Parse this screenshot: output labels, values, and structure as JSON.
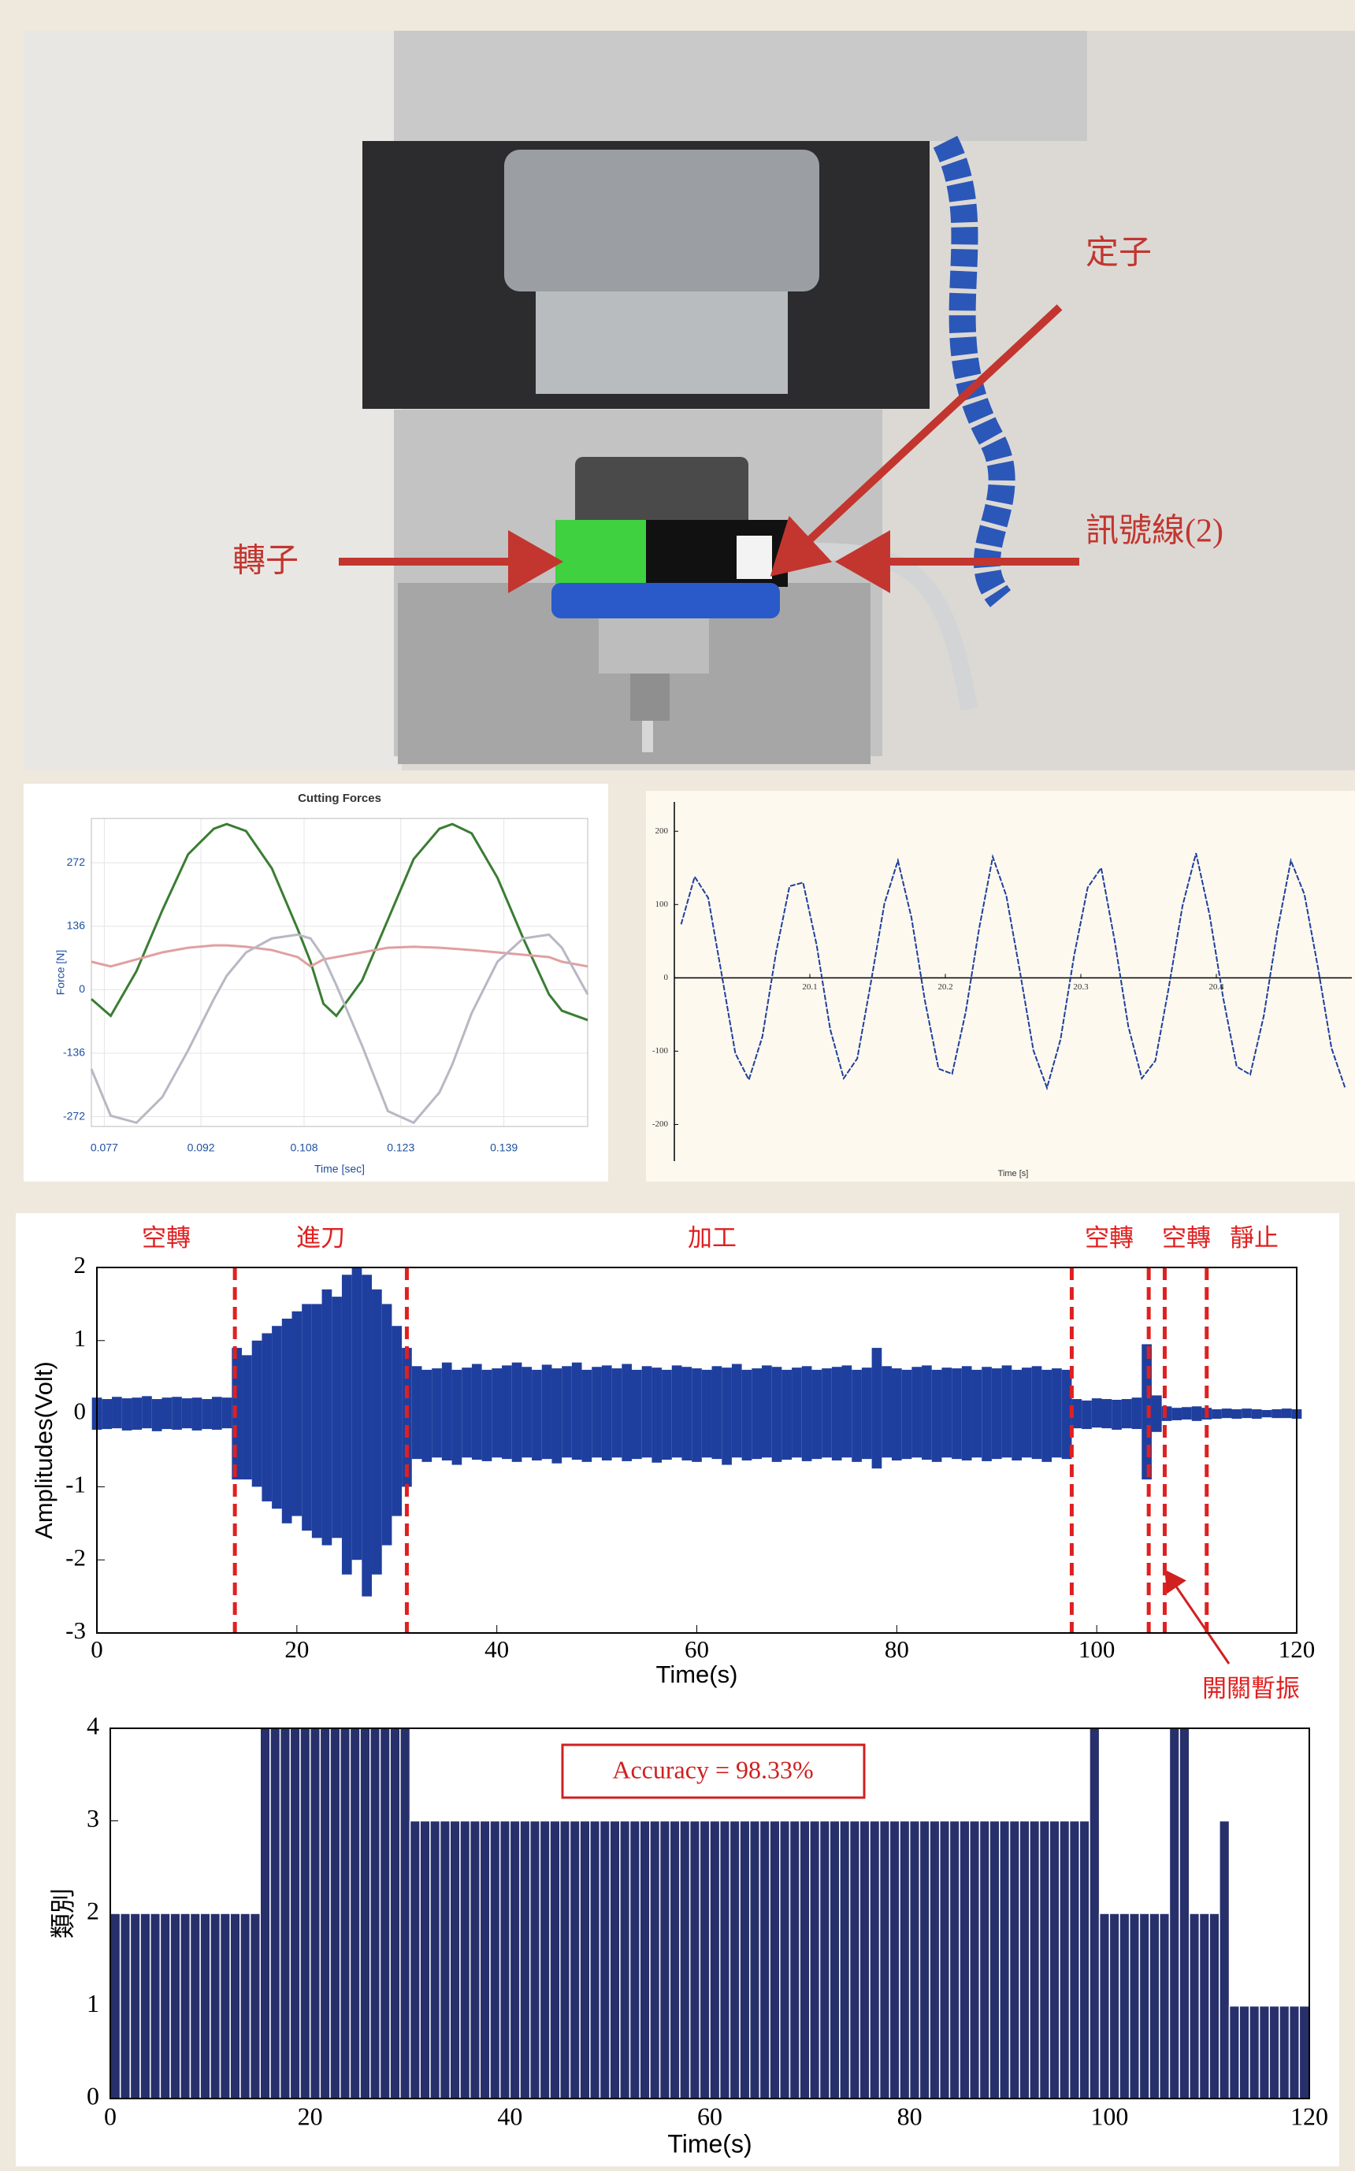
{
  "photo": {
    "labels": [
      "定子",
      "訊號線(2)",
      "轉子"
    ]
  },
  "chart_data": [
    {
      "type": "line",
      "title": "Cutting Forces",
      "x_label": "Time [sec]",
      "y_label": "Force [N]",
      "x": [
        0.075,
        0.078,
        0.082,
        0.086,
        0.09,
        0.094,
        0.096,
        0.099,
        0.103,
        0.107,
        0.109,
        0.111,
        0.113,
        0.117,
        0.121,
        0.125,
        0.129,
        0.131,
        0.134,
        0.138,
        0.142,
        0.146,
        0.148,
        0.152
      ],
      "series": [
        {
          "color": "#3a7d33",
          "values": [
            -20,
            -56,
            40,
            170,
            290,
            345,
            355,
            340,
            260,
            130,
            60,
            -30,
            -56,
            20,
            150,
            280,
            345,
            355,
            335,
            240,
            110,
            -10,
            -45,
            -65
          ]
        },
        {
          "color": "#e0a0a0",
          "values": [
            60,
            50,
            65,
            80,
            90,
            95,
            95,
            92,
            85,
            70,
            50,
            65,
            70,
            80,
            90,
            92,
            90,
            88,
            85,
            80,
            75,
            70,
            60,
            50
          ]
        },
        {
          "color": "#b8b8c4",
          "values": [
            -170,
            -270,
            -285,
            -230,
            -130,
            -20,
            30,
            80,
            110,
            118,
            110,
            70,
            10,
            -120,
            -260,
            -285,
            -220,
            -160,
            -50,
            60,
            110,
            118,
            90,
            -10
          ]
        }
      ],
      "xlim": [
        0.075,
        0.152
      ],
      "ylim": [
        -293,
        367
      ],
      "xticks": [
        0.077,
        0.092,
        0.108,
        0.123,
        0.139
      ],
      "yticks": [
        -272,
        -136,
        0,
        136,
        272
      ],
      "grid": true
    },
    {
      "type": "line",
      "x_label": "Time [s]",
      "x": [
        20.005,
        20.015,
        20.025,
        20.035,
        20.045,
        20.055,
        20.065,
        20.075,
        20.085,
        20.095,
        20.105,
        20.115,
        20.125,
        20.135,
        20.145,
        20.155,
        20.165,
        20.175,
        20.185,
        20.195,
        20.205,
        20.215,
        20.225,
        20.235,
        20.245,
        20.255,
        20.265,
        20.275,
        20.285,
        20.295,
        20.305,
        20.315,
        20.325,
        20.335,
        20.345,
        20.355,
        20.365,
        20.375,
        20.385,
        20.395,
        20.405,
        20.415,
        20.425,
        20.435,
        20.445,
        20.455,
        20.465,
        20.475,
        20.485,
        20.495
      ],
      "series": [
        {
          "color": "#1f3f9e",
          "values": [
            73,
            138,
            109,
            4,
            -103,
            -139,
            -80,
            34,
            125,
            130,
            45,
            -70,
            -137,
            -110,
            -7,
            101,
            160,
            82,
            -32,
            -124,
            -131,
            -47,
            68,
            165,
            112,
            9,
            -99,
            -150,
            -84,
            30,
            123,
            150,
            50,
            -66,
            -137,
            -113,
            -12,
            98,
            170,
            86,
            -27,
            -121,
            -132,
            -52,
            64,
            160,
            114,
            14,
            -96,
            -150
          ]
        }
      ],
      "xlim": [
        20.0,
        20.5
      ],
      "ylim": [
        -250,
        240
      ],
      "xticks": [
        20.1,
        20.2,
        20.3,
        20.4
      ],
      "yticks": [
        -200,
        -100,
        0,
        100,
        200
      ]
    },
    {
      "type": "band",
      "x_label": "Time(s)",
      "y_label": "Amplitudes(Volt)",
      "phase_labels": [
        "空轉",
        "進刀",
        "加工",
        "空轉",
        "空轉",
        "靜止"
      ],
      "annotation": "開關暫振",
      "boundaries": [
        13.8,
        31,
        97.5,
        105.2,
        106.8,
        111
      ],
      "boundary_color": "#e02020",
      "x": [
        0,
        1,
        2,
        3,
        4,
        5,
        6,
        7,
        8,
        9,
        10,
        11,
        12,
        13,
        14,
        15,
        16,
        17,
        18,
        19,
        20,
        21,
        22,
        23,
        24,
        25,
        26,
        27,
        28,
        29,
        30,
        31,
        32,
        33,
        34,
        35,
        36,
        37,
        38,
        39,
        40,
        41,
        42,
        43,
        44,
        45,
        46,
        47,
        48,
        49,
        50,
        51,
        52,
        53,
        54,
        55,
        56,
        57,
        58,
        59,
        60,
        61,
        62,
        63,
        64,
        65,
        66,
        67,
        68,
        69,
        70,
        71,
        72,
        73,
        74,
        75,
        76,
        77,
        78,
        79,
        80,
        81,
        82,
        83,
        84,
        85,
        86,
        87,
        88,
        89,
        90,
        91,
        92,
        93,
        94,
        95,
        96,
        97,
        98,
        99,
        100,
        101,
        102,
        103,
        104,
        105,
        106,
        107,
        108,
        109,
        110,
        111,
        112,
        113,
        114,
        115,
        116,
        117,
        118,
        119,
        120
      ],
      "series": [
        {
          "color": "#1f3f9e",
          "values": [
            0.22,
            0.2,
            0.23,
            0.21,
            0.22,
            0.24,
            0.2,
            0.22,
            0.23,
            0.21,
            0.22,
            0.2,
            0.23,
            0.22,
            0.9,
            0.8,
            1.0,
            1.1,
            1.2,
            1.3,
            1.4,
            1.5,
            1.5,
            1.7,
            1.6,
            1.9,
            2.0,
            1.9,
            1.7,
            1.5,
            1.2,
            0.9,
            0.65,
            0.6,
            0.62,
            0.7,
            0.6,
            0.63,
            0.68,
            0.6,
            0.62,
            0.66,
            0.7,
            0.64,
            0.6,
            0.67,
            0.62,
            0.65,
            0.7,
            0.6,
            0.64,
            0.66,
            0.62,
            0.68,
            0.6,
            0.65,
            0.63,
            0.6,
            0.66,
            0.64,
            0.62,
            0.6,
            0.65,
            0.63,
            0.68,
            0.6,
            0.62,
            0.66,
            0.64,
            0.6,
            0.63,
            0.65,
            0.6,
            0.62,
            0.64,
            0.66,
            0.6,
            0.63,
            0.9,
            0.65,
            0.62,
            0.6,
            0.64,
            0.66,
            0.6,
            0.63,
            0.62,
            0.65,
            0.6,
            0.64,
            0.62,
            0.66,
            0.6,
            0.63,
            0.65,
            0.6,
            0.62,
            0.6,
            0.2,
            0.18,
            0.21,
            0.2,
            0.19,
            0.2,
            0.22,
            0.95,
            0.25,
            0.1,
            0.08,
            0.09,
            0.1,
            0.08,
            0.06,
            0.07,
            0.06,
            0.07,
            0.06,
            0.05,
            0.06,
            0.07,
            0.06
          ]
        },
        {
          "color": "#1f3f9e",
          "values": [
            -0.22,
            -0.21,
            -0.2,
            -0.23,
            -0.22,
            -0.2,
            -0.24,
            -0.21,
            -0.22,
            -0.2,
            -0.23,
            -0.21,
            -0.22,
            -0.2,
            -0.9,
            -0.9,
            -1.0,
            -1.2,
            -1.3,
            -1.5,
            -1.4,
            -1.6,
            -1.7,
            -1.8,
            -1.7,
            -2.2,
            -2.0,
            -2.5,
            -2.2,
            -1.8,
            -1.4,
            -1.0,
            -0.62,
            -0.66,
            -0.6,
            -0.64,
            -0.7,
            -0.6,
            -0.63,
            -0.65,
            -0.6,
            -0.62,
            -0.66,
            -0.6,
            -0.64,
            -0.62,
            -0.68,
            -0.6,
            -0.63,
            -0.66,
            -0.6,
            -0.64,
            -0.6,
            -0.65,
            -0.62,
            -0.6,
            -0.67,
            -0.63,
            -0.6,
            -0.64,
            -0.66,
            -0.6,
            -0.62,
            -0.7,
            -0.6,
            -0.64,
            -0.62,
            -0.6,
            -0.66,
            -0.63,
            -0.6,
            -0.65,
            -0.62,
            -0.6,
            -0.64,
            -0.6,
            -0.66,
            -0.62,
            -0.75,
            -0.6,
            -0.64,
            -0.62,
            -0.6,
            -0.63,
            -0.66,
            -0.6,
            -0.62,
            -0.64,
            -0.6,
            -0.65,
            -0.62,
            -0.6,
            -0.64,
            -0.6,
            -0.62,
            -0.66,
            -0.6,
            -0.62,
            -0.2,
            -0.21,
            -0.19,
            -0.2,
            -0.22,
            -0.2,
            -0.21,
            -0.9,
            -0.25,
            -0.1,
            -0.09,
            -0.08,
            -0.1,
            -0.08,
            -0.07,
            -0.06,
            -0.07,
            -0.06,
            -0.07,
            -0.05,
            -0.06,
            -0.06,
            -0.07
          ]
        }
      ],
      "xlim": [
        0,
        120
      ],
      "ylim": [
        -3,
        2
      ],
      "xticks": [
        0,
        20,
        40,
        60,
        80,
        100,
        120
      ],
      "yticks": [
        -3,
        -2,
        -1,
        0,
        1,
        2
      ]
    },
    {
      "type": "bar",
      "x_label": "Time(s)",
      "y_label": "類別",
      "annotation": "Accuracy = 98.33%",
      "color": "#27306b",
      "x": [
        1,
        2,
        3,
        4,
        5,
        6,
        7,
        8,
        9,
        10,
        11,
        12,
        13,
        14,
        15,
        16,
        17,
        18,
        19,
        20,
        21,
        22,
        23,
        24,
        25,
        26,
        27,
        28,
        29,
        30,
        31,
        32,
        33,
        34,
        35,
        36,
        37,
        38,
        39,
        40,
        41,
        42,
        43,
        44,
        45,
        46,
        47,
        48,
        49,
        50,
        51,
        52,
        53,
        54,
        55,
        56,
        57,
        58,
        59,
        60,
        61,
        62,
        63,
        64,
        65,
        66,
        67,
        68,
        69,
        70,
        71,
        72,
        73,
        74,
        75,
        76,
        77,
        78,
        79,
        80,
        81,
        82,
        83,
        84,
        85,
        86,
        87,
        88,
        89,
        90,
        91,
        92,
        93,
        94,
        95,
        96,
        97,
        98,
        99,
        100,
        101,
        102,
        103,
        104,
        105,
        106,
        107,
        108,
        109,
        110,
        111,
        112,
        113,
        114,
        115,
        116,
        117,
        118,
        119,
        120
      ],
      "values": [
        2,
        2,
        2,
        2,
        2,
        2,
        2,
        2,
        2,
        2,
        2,
        2,
        2,
        2,
        2,
        4,
        4,
        4,
        4,
        4,
        4,
        4,
        4,
        4,
        4,
        4,
        4,
        4,
        4,
        4,
        3,
        3,
        3,
        3,
        3,
        3,
        3,
        3,
        3,
        3,
        3,
        3,
        3,
        3,
        3,
        3,
        3,
        3,
        3,
        3,
        3,
        3,
        3,
        3,
        3,
        3,
        3,
        3,
        3,
        3,
        3,
        3,
        3,
        3,
        3,
        3,
        3,
        3,
        3,
        3,
        3,
        3,
        3,
        3,
        3,
        3,
        3,
        3,
        3,
        3,
        3,
        3,
        3,
        3,
        3,
        3,
        3,
        3,
        3,
        3,
        3,
        3,
        3,
        3,
        3,
        3,
        3,
        3,
        4,
        2,
        2,
        2,
        2,
        2,
        2,
        2,
        4,
        4,
        2,
        2,
        2,
        3,
        1,
        1,
        1,
        1,
        1,
        1,
        1,
        1
      ],
      "xlim": [
        0,
        120
      ],
      "ylim": [
        0,
        4
      ],
      "xticks": [
        0,
        20,
        40,
        60,
        80,
        100,
        120
      ],
      "yticks": [
        0,
        1,
        2,
        3,
        4
      ]
    }
  ]
}
